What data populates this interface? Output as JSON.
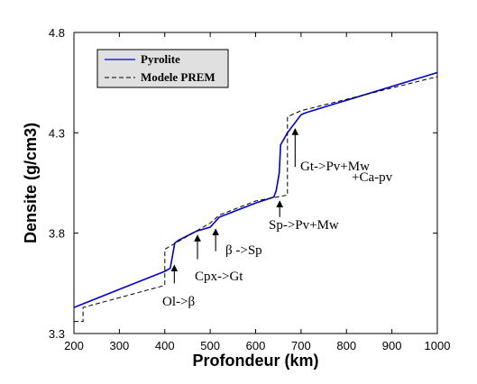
{
  "chart_data": {
    "type": "line",
    "xlabel": "Profondeur (km)",
    "ylabel": "Densite (g/cm3)",
    "xlim": [
      200,
      1000
    ],
    "ylim": [
      3.3,
      4.8
    ],
    "x_ticks": [
      200,
      300,
      400,
      500,
      600,
      700,
      800,
      900,
      1000
    ],
    "x_tick_labels": [
      "200",
      "300",
      "400",
      "500",
      "600",
      "700",
      "800",
      "900",
      "1000"
    ],
    "y_ticks": [
      3.3,
      3.8,
      4.3,
      4.8
    ],
    "y_tick_labels": [
      "3.3",
      "3.8",
      "4.3",
      "4.8"
    ],
    "legend_position": "top-left",
    "series": [
      {
        "name": "Pyrolite",
        "style": "solid",
        "color": "#0000cc",
        "x": [
          200,
          300,
          400,
          412,
          422,
          430,
          470,
          500,
          520,
          600,
          640,
          645,
          652,
          655,
          670,
          700,
          710,
          1000
        ],
        "y": [
          3.43,
          3.52,
          3.61,
          3.625,
          3.75,
          3.765,
          3.81,
          3.83,
          3.88,
          3.95,
          3.98,
          4.01,
          4.1,
          4.24,
          4.3,
          4.39,
          4.4,
          4.6
        ]
      },
      {
        "name": "Modele PREM",
        "style": "dashed",
        "color": "#000000",
        "x": [
          200,
          220,
          220,
          400,
          400,
          500,
          520,
          600,
          670,
          670,
          700,
          1000
        ],
        "y": [
          3.36,
          3.36,
          3.43,
          3.54,
          3.72,
          3.85,
          3.89,
          3.96,
          3.99,
          4.38,
          4.41,
          4.58
        ]
      }
    ],
    "annotations": [
      {
        "label": "Ol->β",
        "arrow_x": 421,
        "arrow_y_from": 3.55,
        "arrow_y_to": 3.64
      },
      {
        "label": "Cpx->Gt",
        "arrow_x": 472,
        "arrow_y_from": 3.67,
        "arrow_y_to": 3.79
      },
      {
        "label": "β ->Sp",
        "arrow_x": 512,
        "arrow_y_from": 3.71,
        "arrow_y_to": 3.82
      },
      {
        "label": "Sp->Pv+Mw",
        "arrow_x": 653,
        "arrow_y_from": 3.88,
        "arrow_y_to": 3.96
      },
      {
        "label": "Gt->Pv+Mw",
        "arrow_x": 687,
        "arrow_y_from": 4.13,
        "arrow_y_to": 4.32
      },
      {
        "label": "+Ca-pv",
        "arrow_x": null,
        "arrow_y_from": null,
        "arrow_y_to": null
      }
    ]
  },
  "legend": {
    "items": [
      {
        "label": "Pyrolite",
        "style": "solid",
        "color": "#0000cc"
      },
      {
        "label": "Modele PREM",
        "style": "dashed",
        "color": "#000000"
      }
    ],
    "background": "#e0e0e0"
  }
}
